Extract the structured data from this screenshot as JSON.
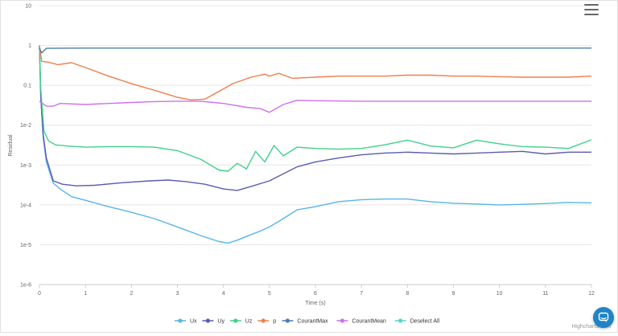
{
  "menu": {
    "icon": "hamburger-menu-icon"
  },
  "chat": {
    "icon": "chat-bubble-icon",
    "color": "#1e84c7"
  },
  "credits": "Highcharts.com",
  "chart_data": {
    "type": "line",
    "title": "",
    "xlabel": "Time (s)",
    "ylabel": "Residual",
    "xlim": [
      0,
      12
    ],
    "ylim": [
      1e-06,
      10
    ],
    "yscale": "log",
    "x_ticks": [
      "0",
      "1",
      "2",
      "3",
      "4",
      "5",
      "6",
      "7",
      "8",
      "9",
      "10",
      "11",
      "12"
    ],
    "y_ticks": [
      "1e-6",
      "1e-5",
      "1e-4",
      "1e-3",
      "1e-2",
      "0.1",
      "1",
      "10"
    ],
    "grid": "horizontal",
    "legend": "bottom-center",
    "legend_extra": "Deselect All",
    "series": [
      {
        "name": "Ux",
        "color": "#58b4e9",
        "points": [
          [
            0,
            1
          ],
          [
            0.03,
            0.05
          ],
          [
            0.08,
            0.005
          ],
          [
            0.15,
            0.0012
          ],
          [
            0.3,
            0.00035
          ],
          [
            0.45,
            0.00025
          ],
          [
            0.7,
            0.00016
          ],
          [
            1,
            0.00013
          ],
          [
            1.5,
            9e-05
          ],
          [
            2,
            6.5e-05
          ],
          [
            2.5,
            4.5e-05
          ],
          [
            3,
            2.8e-05
          ],
          [
            3.5,
            1.7e-05
          ],
          [
            3.9,
            1.2e-05
          ],
          [
            4.1,
            1.1e-05
          ],
          [
            4.3,
            1.3e-05
          ],
          [
            4.6,
            1.8e-05
          ],
          [
            4.8,
            2.2e-05
          ],
          [
            5,
            2.8e-05
          ],
          [
            5.3,
            4.5e-05
          ],
          [
            5.6,
            7.5e-05
          ],
          [
            6,
            9e-05
          ],
          [
            6.5,
            0.00012
          ],
          [
            7,
            0.000135
          ],
          [
            7.5,
            0.00014
          ],
          [
            8,
            0.00014
          ],
          [
            8.5,
            0.00012
          ],
          [
            9,
            0.00011
          ],
          [
            9.5,
            0.000105
          ],
          [
            10,
            0.0001
          ],
          [
            10.5,
            0.000103
          ],
          [
            11,
            0.000108
          ],
          [
            11.5,
            0.000115
          ],
          [
            12,
            0.000112
          ]
        ]
      },
      {
        "name": "Uy",
        "color": "#5a5cb0",
        "points": [
          [
            0,
            1
          ],
          [
            0.03,
            0.05
          ],
          [
            0.08,
            0.006
          ],
          [
            0.15,
            0.0015
          ],
          [
            0.3,
            0.0004
          ],
          [
            0.5,
            0.00033
          ],
          [
            0.8,
            0.0003
          ],
          [
            1.2,
            0.00031
          ],
          [
            1.8,
            0.00036
          ],
          [
            2.4,
            0.0004
          ],
          [
            2.8,
            0.00042
          ],
          [
            3.2,
            0.00038
          ],
          [
            3.6,
            0.00033
          ],
          [
            4,
            0.00025
          ],
          [
            4.3,
            0.00023
          ],
          [
            4.6,
            0.00029
          ],
          [
            5,
            0.0004
          ],
          [
            5.3,
            0.0006
          ],
          [
            5.6,
            0.0009
          ],
          [
            6,
            0.0012
          ],
          [
            6.5,
            0.0015
          ],
          [
            7,
            0.0018
          ],
          [
            7.5,
            0.002
          ],
          [
            8,
            0.0021
          ],
          [
            8.5,
            0.002
          ],
          [
            9,
            0.0019
          ],
          [
            9.5,
            0.002
          ],
          [
            10,
            0.0021
          ],
          [
            10.5,
            0.0022
          ],
          [
            11,
            0.0019
          ],
          [
            11.5,
            0.0021
          ],
          [
            12,
            0.0021
          ]
        ]
      },
      {
        "name": "Uz",
        "color": "#3fd18a",
        "points": [
          [
            0,
            1
          ],
          [
            0.03,
            0.08
          ],
          [
            0.1,
            0.007
          ],
          [
            0.2,
            0.004
          ],
          [
            0.35,
            0.0032
          ],
          [
            0.6,
            0.003
          ],
          [
            1,
            0.0028
          ],
          [
            1.5,
            0.0029
          ],
          [
            2,
            0.0029
          ],
          [
            2.5,
            0.0028
          ],
          [
            3,
            0.0023
          ],
          [
            3.5,
            0.0014
          ],
          [
            3.9,
            0.00075
          ],
          [
            4.1,
            0.0007
          ],
          [
            4.3,
            0.0011
          ],
          [
            4.5,
            0.0008
          ],
          [
            4.7,
            0.0022
          ],
          [
            4.9,
            0.0012
          ],
          [
            5.1,
            0.0031
          ],
          [
            5.3,
            0.0017
          ],
          [
            5.6,
            0.0028
          ],
          [
            6,
            0.0026
          ],
          [
            6.5,
            0.0025
          ],
          [
            7,
            0.0026
          ],
          [
            7.5,
            0.0032
          ],
          [
            8,
            0.0042
          ],
          [
            8.5,
            0.003
          ],
          [
            9,
            0.0027
          ],
          [
            9.5,
            0.0042
          ],
          [
            10,
            0.0034
          ],
          [
            10.5,
            0.0029
          ],
          [
            11,
            0.0028
          ],
          [
            11.5,
            0.0026
          ],
          [
            12,
            0.0043
          ]
        ]
      },
      {
        "name": "p",
        "color": "#f07e4e",
        "points": [
          [
            0,
            1
          ],
          [
            0.05,
            0.4
          ],
          [
            0.2,
            0.38
          ],
          [
            0.4,
            0.33
          ],
          [
            0.7,
            0.37
          ],
          [
            1,
            0.28
          ],
          [
            1.5,
            0.17
          ],
          [
            2,
            0.11
          ],
          [
            2.5,
            0.075
          ],
          [
            3,
            0.05
          ],
          [
            3.3,
            0.043
          ],
          [
            3.6,
            0.045
          ],
          [
            3.9,
            0.07
          ],
          [
            4.2,
            0.11
          ],
          [
            4.6,
            0.16
          ],
          [
            4.9,
            0.19
          ],
          [
            5,
            0.17
          ],
          [
            5.2,
            0.2
          ],
          [
            5.5,
            0.15
          ],
          [
            6,
            0.16
          ],
          [
            6.5,
            0.17
          ],
          [
            7,
            0.17
          ],
          [
            7.5,
            0.17
          ],
          [
            8,
            0.18
          ],
          [
            8.5,
            0.18
          ],
          [
            9,
            0.17
          ],
          [
            9.5,
            0.17
          ],
          [
            10,
            0.165
          ],
          [
            10.5,
            0.16
          ],
          [
            11,
            0.16
          ],
          [
            11.5,
            0.16
          ],
          [
            12,
            0.17
          ]
        ]
      },
      {
        "name": "CourantMax",
        "color": "#4a7bb0",
        "points": [
          [
            0,
            0.85
          ],
          [
            0.05,
            0.65
          ],
          [
            0.15,
            0.85
          ],
          [
            1,
            0.86
          ],
          [
            2,
            0.86
          ],
          [
            3,
            0.86
          ],
          [
            4,
            0.86
          ],
          [
            5,
            0.86
          ],
          [
            6,
            0.86
          ],
          [
            7,
            0.86
          ],
          [
            8,
            0.86
          ],
          [
            9,
            0.86
          ],
          [
            10,
            0.86
          ],
          [
            11,
            0.86
          ],
          [
            12,
            0.86
          ]
        ]
      },
      {
        "name": "CourantMean",
        "color": "#d070ea",
        "points": [
          [
            0,
            0.04
          ],
          [
            0.15,
            0.03
          ],
          [
            0.3,
            0.03
          ],
          [
            0.45,
            0.035
          ],
          [
            1,
            0.033
          ],
          [
            1.5,
            0.035
          ],
          [
            2,
            0.037
          ],
          [
            2.5,
            0.039
          ],
          [
            3,
            0.04
          ],
          [
            3.5,
            0.04
          ],
          [
            4,
            0.035
          ],
          [
            4.5,
            0.028
          ],
          [
            4.8,
            0.026
          ],
          [
            5,
            0.021
          ],
          [
            5.3,
            0.033
          ],
          [
            5.6,
            0.042
          ],
          [
            6,
            0.041
          ],
          [
            7,
            0.04
          ],
          [
            8,
            0.04
          ],
          [
            9,
            0.04
          ],
          [
            10,
            0.04
          ],
          [
            11,
            0.04
          ],
          [
            12,
            0.04
          ]
        ]
      }
    ]
  }
}
